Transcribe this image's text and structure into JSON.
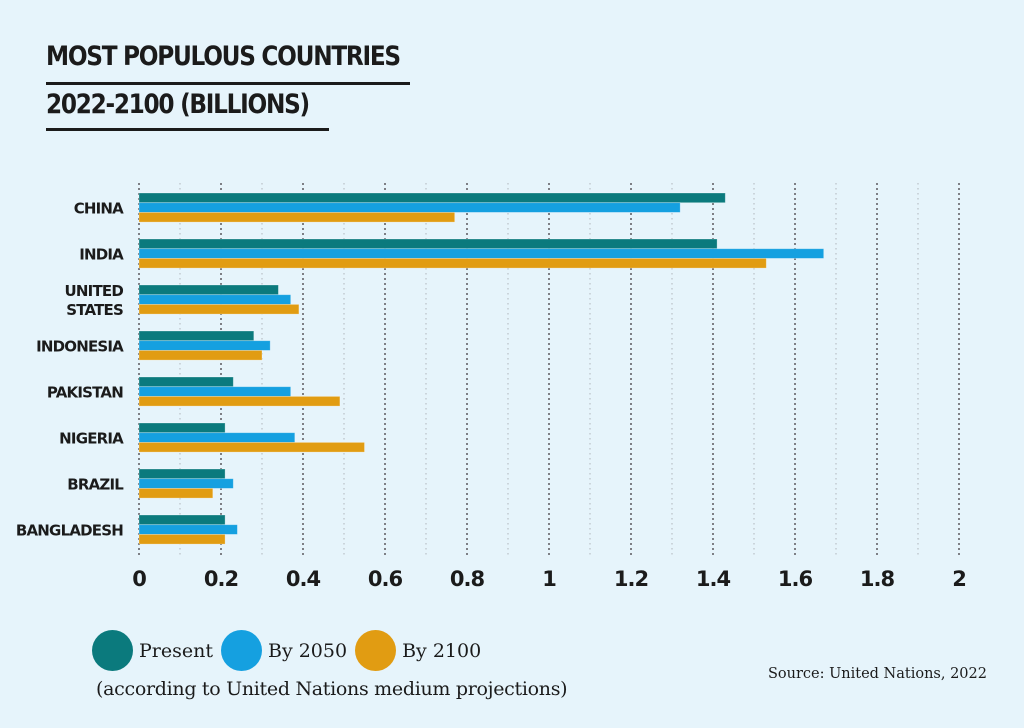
{
  "chart_data": {
    "type": "bar",
    "orientation": "horizontal",
    "title": "MOST POPULOUS COUNTRIES 2022-2100 (BILLIONS)",
    "title_lines": [
      "MOST POPULOUS COUNTRIES",
      "2022-2100 (BILLIONS)"
    ],
    "xlabel": "",
    "ylabel": "",
    "categories": [
      "CHINA",
      "INDIA",
      "UNITED STATES",
      "INDONESIA",
      "PAKISTAN",
      "NIGERIA",
      "BRAZIL",
      "BANGLADESH"
    ],
    "category_label_lines": [
      [
        "CHINA"
      ],
      [
        "INDIA"
      ],
      [
        "UNITED",
        "STATES"
      ],
      [
        "INDONESIA"
      ],
      [
        "PAKISTAN"
      ],
      [
        "NIGERIA"
      ],
      [
        "BRAZIL"
      ],
      [
        "BANGLADESH"
      ]
    ],
    "series": [
      {
        "name": "Present",
        "color": "#0b7a7d",
        "values": [
          1.43,
          1.41,
          0.34,
          0.28,
          0.23,
          0.21,
          0.21,
          0.21
        ]
      },
      {
        "name": "By 2050",
        "color": "#15a0e0",
        "values": [
          1.32,
          1.67,
          0.37,
          0.32,
          0.37,
          0.38,
          0.23,
          0.24
        ]
      },
      {
        "name": "By 2100",
        "color": "#e19c12",
        "values": [
          0.77,
          1.53,
          0.39,
          0.3,
          0.49,
          0.55,
          0.18,
          0.21
        ]
      }
    ],
    "xlim": [
      0,
      2
    ],
    "xticks": [
      0,
      0.2,
      0.4,
      0.6,
      0.8,
      1,
      1.2,
      1.4,
      1.6,
      1.8,
      2
    ],
    "xtick_labels": [
      "0",
      "0.2",
      "0.4",
      "0.6",
      "0.8",
      "1",
      "1.2",
      "1.4",
      "1.6",
      "1.8",
      "2"
    ],
    "minor_grid_step": 0.1,
    "grid": true,
    "legend_position": "bottom-left"
  },
  "legend": {
    "items": [
      {
        "label": "Present",
        "color": "#0b7a7d"
      },
      {
        "label": "By 2050",
        "color": "#15a0e0"
      },
      {
        "label": "By 2100",
        "color": "#e19c12"
      }
    ],
    "note": "(according to United Nations medium projections)"
  },
  "source": "Source: United Nations, 2022"
}
